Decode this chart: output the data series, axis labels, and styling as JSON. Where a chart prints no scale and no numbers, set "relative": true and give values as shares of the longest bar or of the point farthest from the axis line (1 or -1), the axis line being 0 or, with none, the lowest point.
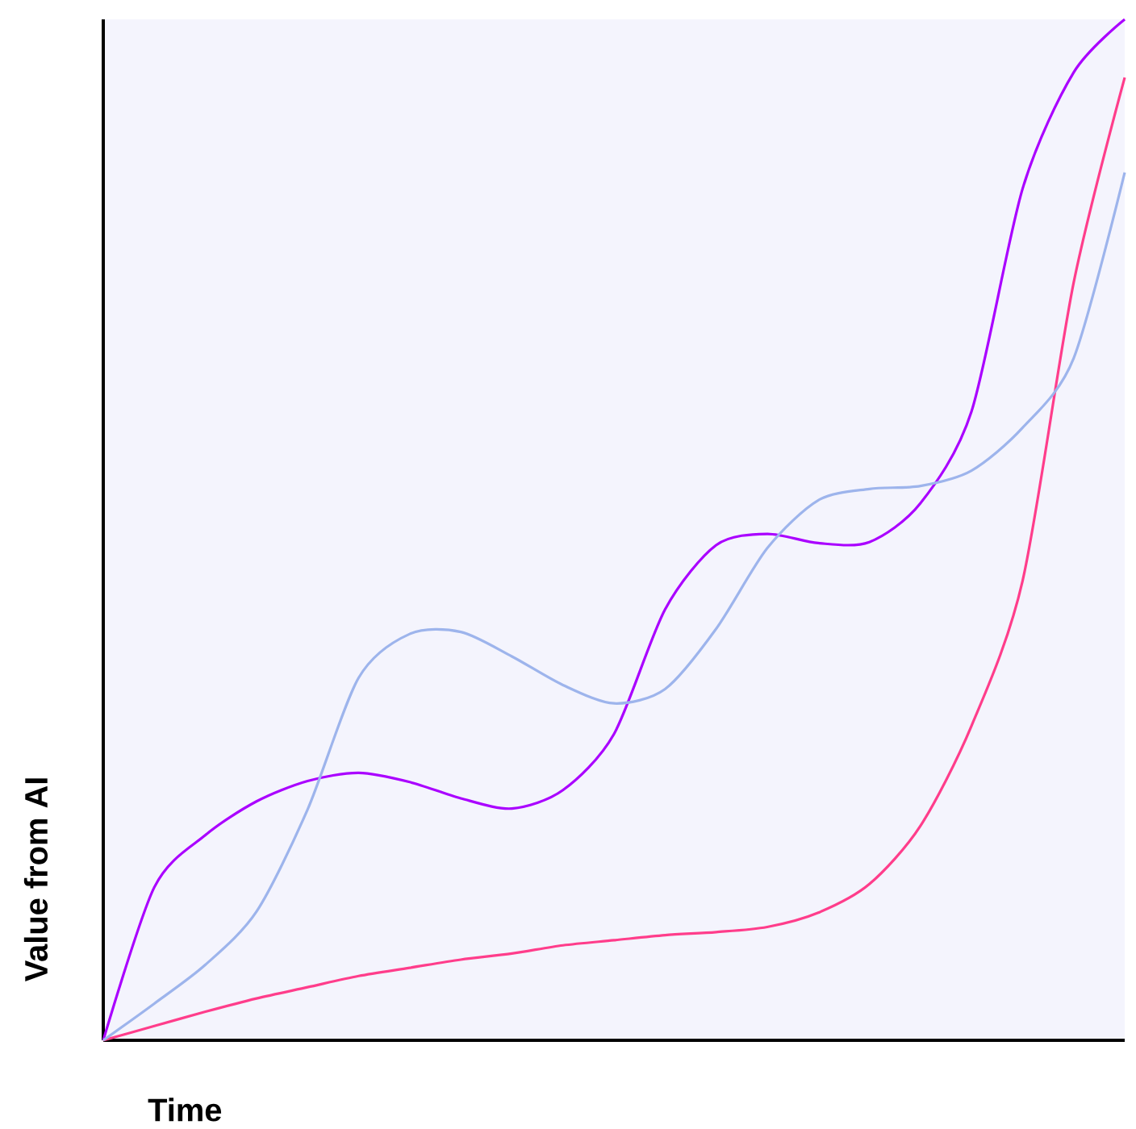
{
  "chart_data": {
    "type": "line",
    "relative": true,
    "xlabel": "Time",
    "ylabel": "Value from AI",
    "marker": "none",
    "line_style": "solid",
    "categories": [
      null,
      null,
      null,
      null,
      null,
      null,
      null,
      null,
      null,
      null,
      null,
      null,
      null,
      null,
      null,
      null,
      null,
      null,
      null,
      null,
      null
    ],
    "series": [
      {
        "color": "#aa00ff",
        "values": [
          0,
          0.15,
          0.201,
          0.234,
          0.254,
          0.262,
          0.253,
          0.237,
          0.227,
          0.245,
          0.3,
          0.422,
          0.485,
          0.496,
          0.487,
          0.488,
          0.526,
          0.616,
          0.834,
          0.948,
          1.0
        ]
      },
      {
        "color": "#ff3d8b",
        "values": [
          0,
          0.014,
          0.028,
          0.041,
          0.052,
          0.063,
          0.071,
          0.079,
          0.085,
          0.093,
          0.098,
          0.103,
          0.106,
          0.111,
          0.125,
          0.153,
          0.21,
          0.308,
          0.45,
          0.742,
          0.943
        ]
      },
      {
        "color": "#9db4ec",
        "values": [
          0,
          0.036,
          0.074,
          0.126,
          0.226,
          0.355,
          0.398,
          0.4,
          0.376,
          0.348,
          0.33,
          0.344,
          0.403,
          0.482,
          0.529,
          0.54,
          0.543,
          0.558,
          0.6,
          0.668,
          0.85
        ]
      }
    ]
  }
}
